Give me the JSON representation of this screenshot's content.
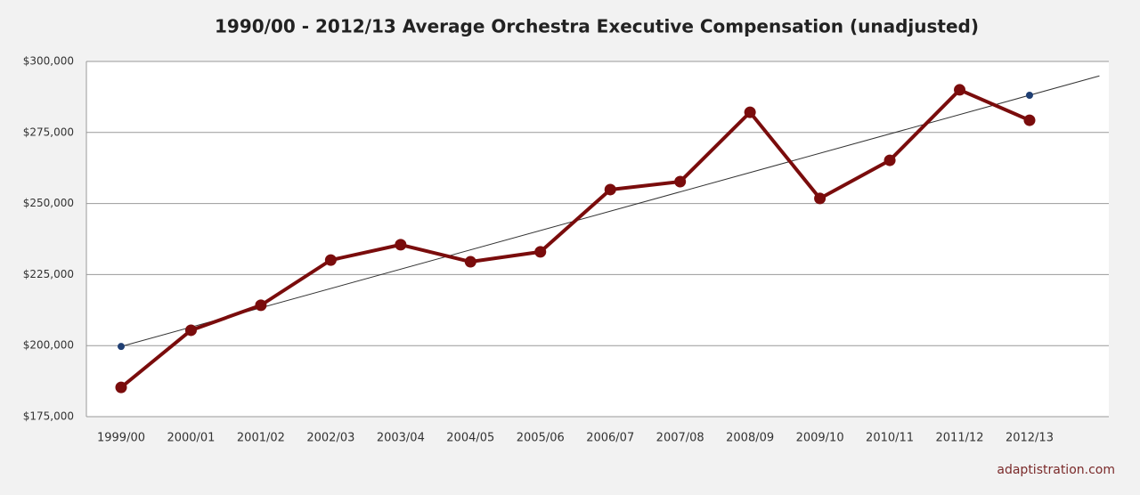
{
  "chart_data": {
    "type": "line",
    "title": "1990/00 - 2012/13 Average Orchestra Executive Compensation (unadjusted)",
    "categories": [
      "1999/00",
      "2000/01",
      "2001/02",
      "2002/03",
      "2003/04",
      "2004/05",
      "2005/06",
      "2006/07",
      "2007/08",
      "2008/09",
      "2009/10",
      "2010/11",
      "2011/12",
      "2012/13"
    ],
    "series": [
      {
        "color": "#7a0c0c",
        "values": [
          185300,
          205400,
          214200,
          230100,
          235500,
          229500,
          233000,
          254900,
          257700,
          282100,
          251800,
          265200,
          290000,
          279300
        ]
      },
      {
        "color": "#1f3f73",
        "values": [
          199700,
          null,
          null,
          null,
          null,
          null,
          null,
          null,
          null,
          null,
          null,
          null,
          null,
          288100
        ]
      }
    ],
    "ylim": [
      175000,
      300000
    ],
    "yticks": [
      {
        "value": 175000,
        "label": "$175,000"
      },
      {
        "value": 200000,
        "label": "$200,000"
      },
      {
        "value": 225000,
        "label": "$225,000"
      },
      {
        "value": 250000,
        "label": "$250,000"
      },
      {
        "value": 275000,
        "label": "$275,000"
      },
      {
        "value": 300000,
        "label": "$300,000"
      }
    ],
    "grid": true,
    "source": "adaptistration.com"
  }
}
